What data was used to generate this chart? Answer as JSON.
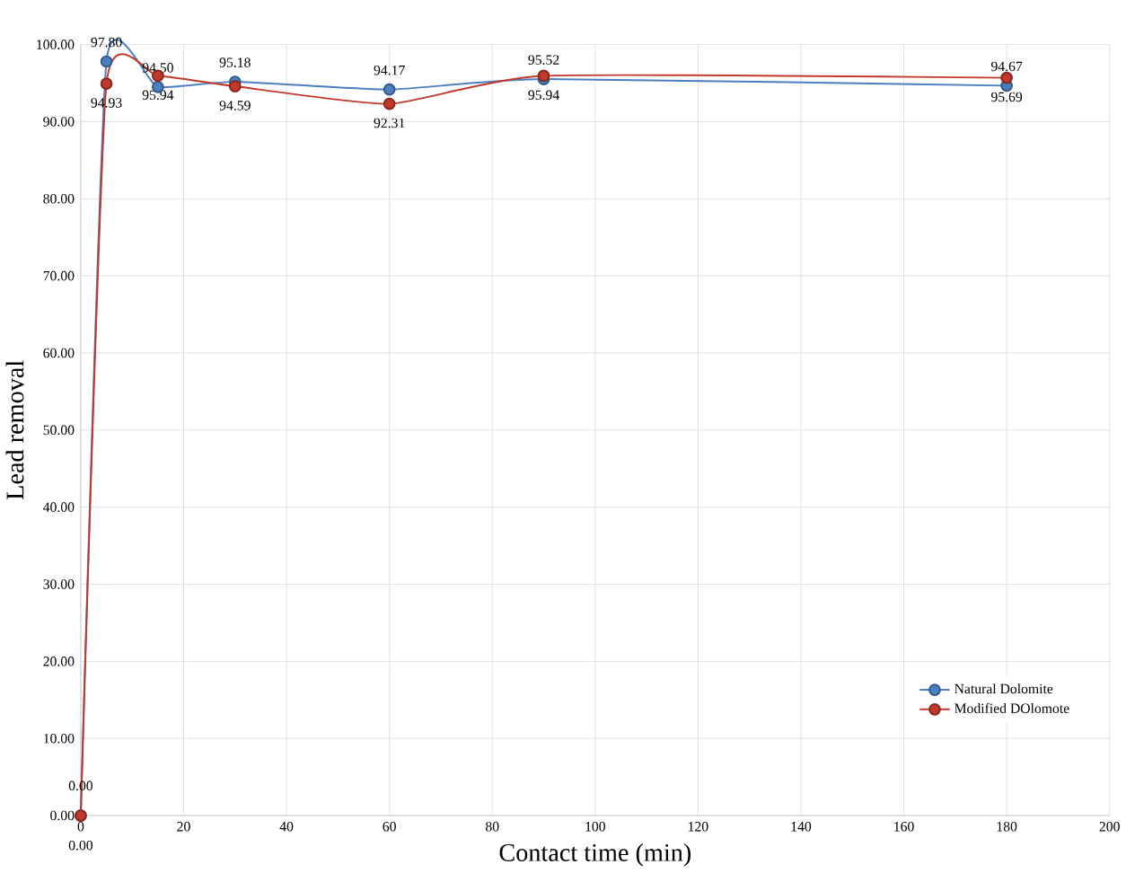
{
  "chart_data": {
    "type": "line",
    "xlabel": "Contact time (min)",
    "ylabel": "Lead removal",
    "x": [
      0,
      5,
      15,
      30,
      60,
      90,
      180
    ],
    "series": [
      {
        "name": "Natural Dolomite",
        "color": "#4a7fc1",
        "values": [
          0.0,
          97.8,
          94.5,
          95.18,
          94.17,
          95.52,
          94.67
        ],
        "value_labels": [
          "0.00",
          "97.80",
          "94.50",
          "95.18",
          "94.17",
          "95.52",
          "94.67"
        ]
      },
      {
        "name": "Modified DOlomote",
        "color": "#c0392b",
        "values": [
          0.0,
          94.93,
          95.94,
          94.59,
          92.31,
          95.94,
          95.69
        ],
        "value_labels": [
          "0.00",
          "94.93",
          "95.94",
          "94.59",
          "92.31",
          "95.94",
          "95.69"
        ]
      }
    ],
    "xlim": [
      0,
      200
    ],
    "xticks": [
      0,
      20,
      40,
      60,
      80,
      100,
      120,
      140,
      160,
      180,
      200
    ],
    "ylim": [
      0,
      100
    ],
    "yticks": [
      {
        "value": 0,
        "label": "0.00"
      },
      {
        "value": 10,
        "label": "10.00"
      },
      {
        "value": 20,
        "label": "20.00"
      },
      {
        "value": 30,
        "label": "30.00"
      },
      {
        "value": 40,
        "label": "40.00"
      },
      {
        "value": 50,
        "label": "50.00"
      },
      {
        "value": 60,
        "label": "60.00"
      },
      {
        "value": 70,
        "label": "70.00"
      },
      {
        "value": 80,
        "label": "80.00"
      },
      {
        "value": 90,
        "label": "90.00"
      },
      {
        "value": 100,
        "label": "100.00"
      }
    ],
    "grid": true,
    "legend": "bottom right",
    "marker": "circle",
    "line_style": "solid"
  }
}
